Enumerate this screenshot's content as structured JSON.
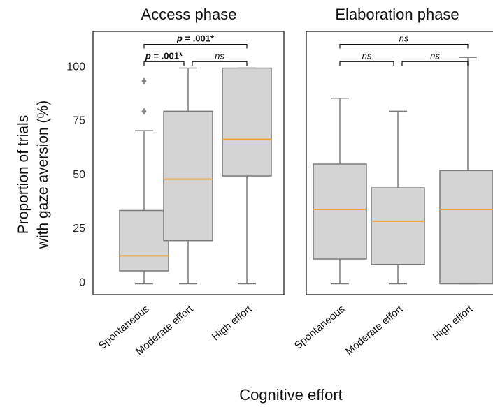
{
  "chart_data": {
    "type": "box",
    "xlabel": "Cognitive effort",
    "ylabel_lines": [
      "Proportion of trials",
      "with gaze aversion (%)"
    ],
    "ylim": [
      -6,
      116
    ],
    "yticks": [
      0,
      25,
      50,
      75,
      100
    ],
    "colors": {
      "box_fill": "#d4d4d4",
      "box_edge": "#7a7a7a",
      "median": "#f0a238",
      "frame": "#333333"
    },
    "categories": [
      "Spontaneous",
      "Moderate effort",
      "High effort"
    ],
    "panels": [
      {
        "title": "Access phase",
        "boxes": [
          {
            "category": "Spontaneous",
            "whisker_low": -1,
            "q1": 5,
            "median": 12,
            "q3": 33,
            "whisker_high": 70,
            "outliers": [
              79,
              93
            ]
          },
          {
            "category": "Moderate effort",
            "whisker_low": -1,
            "q1": 19,
            "median": 47.5,
            "q3": 79,
            "whisker_high": 99,
            "outliers": []
          },
          {
            "category": "High effort",
            "whisker_low": -1,
            "q1": 49,
            "median": 66,
            "q3": 99,
            "whisker_high": 99,
            "outliers": []
          }
        ],
        "comparisons": [
          {
            "from": 0,
            "to": 2,
            "label": "p = .001*",
            "level": 110,
            "bold": true
          },
          {
            "from": 0,
            "to": 1,
            "label": "p = .001*",
            "level": 102,
            "bold": true
          },
          {
            "from": 1,
            "to": 2,
            "label": "ns",
            "level": 102,
            "bold": false
          }
        ]
      },
      {
        "title": "Elaboration phase",
        "boxes": [
          {
            "category": "Spontaneous",
            "whisker_low": -1,
            "q1": 10.5,
            "median": 33.5,
            "q3": 54.5,
            "whisker_high": 85,
            "outliers": []
          },
          {
            "category": "Moderate effort",
            "whisker_low": -1,
            "q1": 8,
            "median": 28,
            "q3": 43.5,
            "whisker_high": 79,
            "outliers": []
          },
          {
            "category": "High effort",
            "whisker_low": -1,
            "q1": -1,
            "median": 33.5,
            "q3": 51.5,
            "whisker_high": 104,
            "outliers": []
          }
        ],
        "comparisons": [
          {
            "from": 0,
            "to": 2,
            "label": "ns",
            "level": 110,
            "bold": false
          },
          {
            "from": 0,
            "to": 1,
            "label": "ns",
            "level": 102,
            "bold": false
          },
          {
            "from": 1,
            "to": 2,
            "label": "ns",
            "level": 102,
            "bold": false
          }
        ]
      }
    ]
  }
}
